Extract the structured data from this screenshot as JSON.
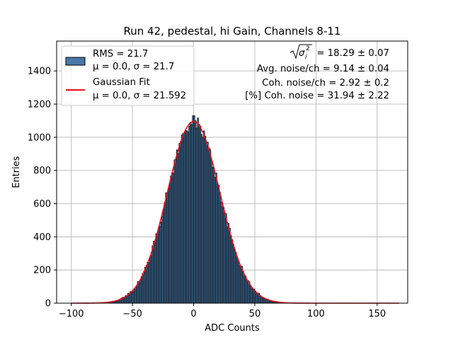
{
  "chart_data": {
    "type": "histogram",
    "title": "Run 42, pedestal, hi Gain, Channels 8-11",
    "xlabel": "ADC Counts",
    "ylabel": "Entries",
    "xlim": [
      -112,
      175
    ],
    "ylim": [
      0,
      1580
    ],
    "xticks": [
      -100,
      -50,
      0,
      50,
      100,
      150
    ],
    "xtick_labels": [
      "−100",
      "−50",
      "0",
      "50",
      "100",
      "150"
    ],
    "yticks": [
      0,
      200,
      400,
      600,
      800,
      1000,
      1200,
      1400
    ],
    "ytick_labels": [
      "0",
      "200",
      "400",
      "600",
      "800",
      "1000",
      "1200",
      "1400"
    ],
    "grid": true,
    "histogram": {
      "name": "RMS = 21.7",
      "bin_start": -100,
      "bin_end": 168,
      "bin_width": 1,
      "peak_entries": 1130,
      "color": "#4878a8",
      "edge_color": "#000000"
    },
    "gaussian_fit": {
      "name": "Gaussian Fit",
      "mu": 0.0,
      "sigma": 21.592,
      "amplitude": 1095,
      "x_range": [
        -100,
        168
      ],
      "color": "#e8101a"
    },
    "legend": {
      "position": "top-left",
      "entries": [
        {
          "line1": "RMS = 21.7",
          "line2": "μ = 0.0, σ = 21.7",
          "marker": "patch"
        },
        {
          "line1": "Gaussian Fit",
          "line2": "μ = 0.0, σ = 21.592",
          "marker": "line"
        }
      ]
    },
    "annotations": {
      "sigma_sum_label": "= 18.29 ± 0.07",
      "sigma_symbol": "σ",
      "sigma_sub": "i",
      "sigma_sup": "2",
      "avg_noise": "Avg. noise/ch = 9.14 ± 0.04",
      "coh_noise": "Coh. noise/ch = 2.92 ± 0.2",
      "coh_pct": "[%] Coh. noise = 31.94 ± 2.22"
    }
  }
}
